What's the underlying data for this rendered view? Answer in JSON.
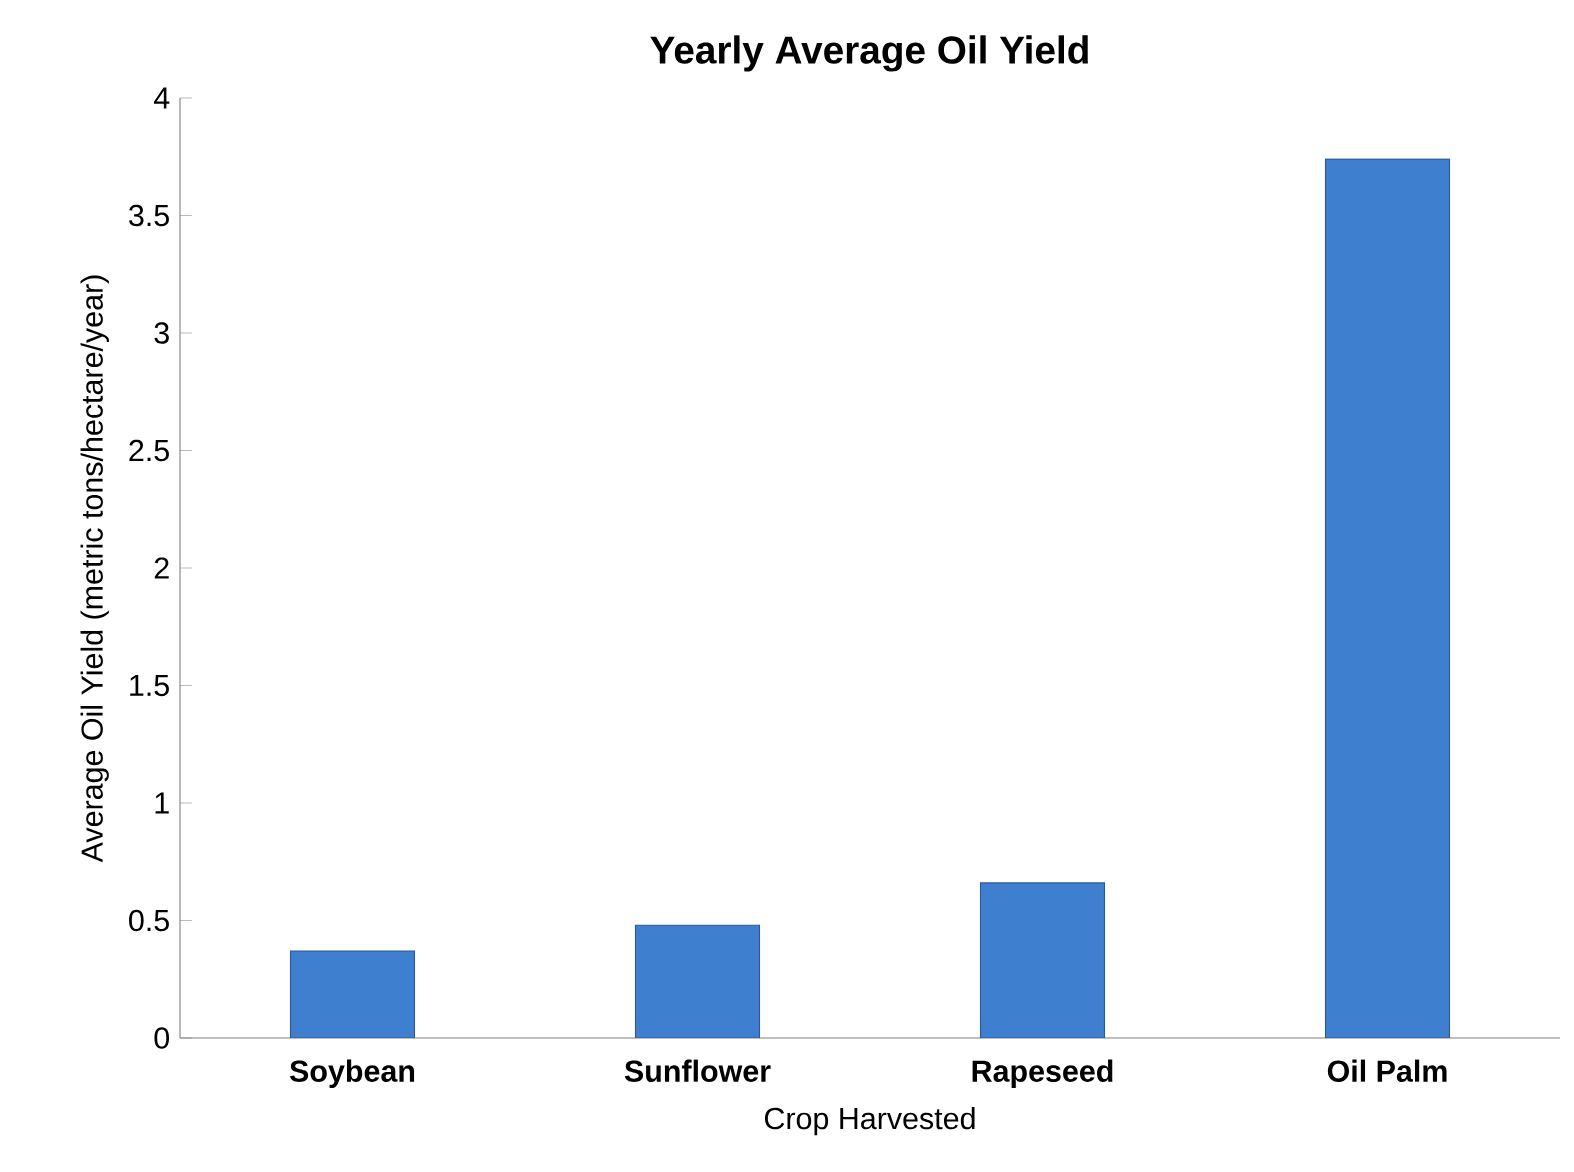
{
  "chart_data": {
    "type": "bar",
    "title": "Yearly Average Oil Yield",
    "xlabel": "Crop Harvested",
    "ylabel": "Average Oil Yield (metric tons/hectare/year)",
    "categories": [
      "Soybean",
      "Sunflower",
      "Rapeseed",
      "Oil Palm"
    ],
    "values": [
      0.37,
      0.48,
      0.66,
      3.74
    ],
    "color": "#3f7fd0",
    "ylim": [
      0,
      4
    ],
    "yticks": [
      0,
      0.5,
      1,
      1.5,
      2,
      2.5,
      3,
      3.5,
      4
    ],
    "grid": false
  }
}
